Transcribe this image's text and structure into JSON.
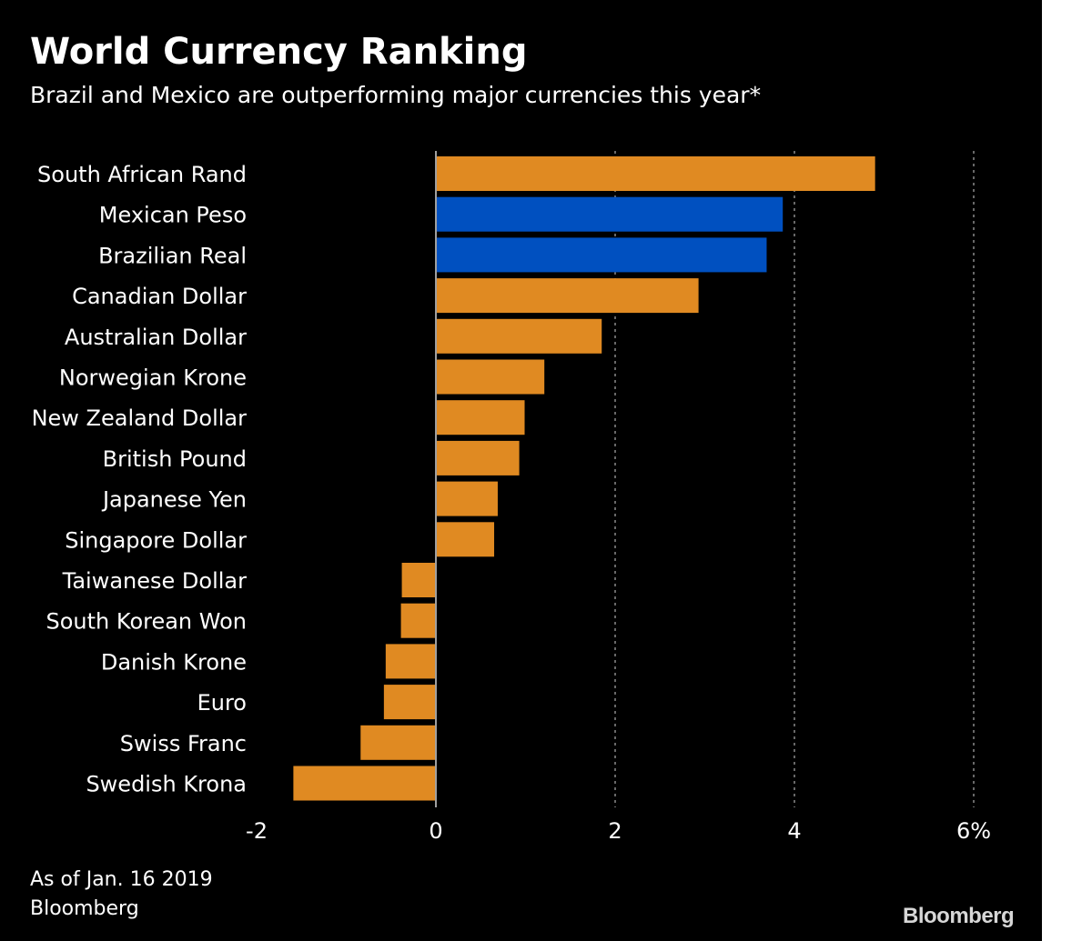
{
  "chart_data": {
    "type": "bar",
    "orientation": "horizontal",
    "title": "World Currency Ranking",
    "subtitle": "Brazil and Mexico are outperforming major currencies this year*",
    "categories": [
      "South African Rand",
      "Mexican Peso",
      "Brazilian Real",
      "Canadian Dollar",
      "Australian Dollar",
      "Norwegian Krone",
      "New Zealand Dollar",
      "British Pound",
      "Japanese Yen",
      "Singapore Dollar",
      "Taiwanese Dollar",
      "South Korean Won",
      "Danish Krone",
      "Euro",
      "Swiss Franc",
      "Swedish Krona"
    ],
    "values": [
      4.9,
      3.87,
      3.69,
      2.93,
      1.85,
      1.21,
      0.99,
      0.93,
      0.69,
      0.65,
      -0.38,
      -0.39,
      -0.56,
      -0.58,
      -0.84,
      -1.59
    ],
    "highlight": [
      "Mexican Peso",
      "Brazilian Real"
    ],
    "xlim": [
      -2,
      6
    ],
    "xticks": [
      -2,
      0,
      2,
      4,
      6
    ],
    "xtick_labels": [
      "-2",
      "0",
      "2",
      "4",
      "6%"
    ],
    "gridlines": [
      2,
      4,
      6
    ],
    "xlabel": "",
    "ylabel": "",
    "colors": {
      "default": "#e08a22",
      "highlight": "#0050c0",
      "background": "#000000",
      "grid": "#8a8a8a",
      "zero_line": "#a0a0a0"
    }
  },
  "footnote": {
    "date": "As of Jan. 16 2019",
    "source": "Bloomberg"
  },
  "brand": "Bloomberg"
}
